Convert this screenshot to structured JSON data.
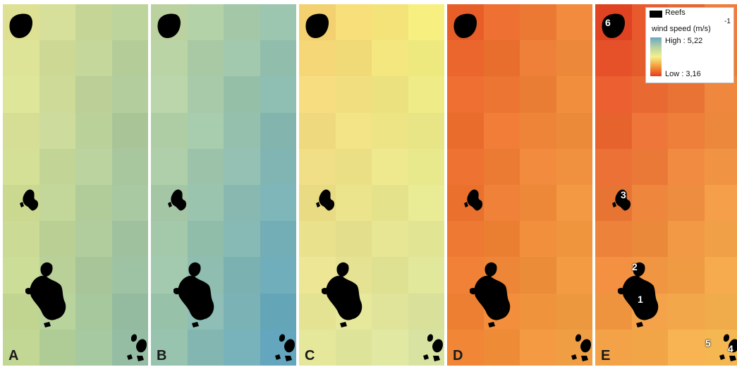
{
  "panels": [
    {
      "letter": "A",
      "colors": {
        "tl": "#eaea98",
        "tr": "#b6cd98",
        "bl": "#c6d88e",
        "br": "#8ab8a8"
      }
    },
    {
      "letter": "B",
      "colors": {
        "tl": "#c8dba2",
        "tr": "#95c0ac",
        "bl": "#9cc4aa",
        "br": "#58a0c2"
      }
    },
    {
      "letter": "C",
      "colors": {
        "tl": "#f9d070",
        "tr": "#f4f17c",
        "bl": "#e4e89a",
        "br": "#d6e2a4"
      }
    },
    {
      "letter": "D",
      "colors": {
        "tl": "#ea5a2a",
        "tr": "#ee8c3c",
        "bl": "#ee8232",
        "br": "#f1a446"
      }
    },
    {
      "letter": "E",
      "colors": {
        "tl": "#e23a22",
        "tr": "#ed7c38",
        "bl": "#f2a144",
        "br": "#f6be56"
      }
    }
  ],
  "reef_numbers": [
    "6",
    "3",
    "2",
    "1",
    "5",
    "4"
  ],
  "legend": {
    "reefs_label": "Reefs",
    "title": "wind speed (m/s)",
    "exponent": "-1",
    "high_label": "High : 5,22",
    "low_label": "Low : 3,16",
    "ramp_colors": [
      "#6aa7c2",
      "#b6d2a4",
      "#f4f08a",
      "#f49a3a",
      "#e63c1c"
    ]
  }
}
